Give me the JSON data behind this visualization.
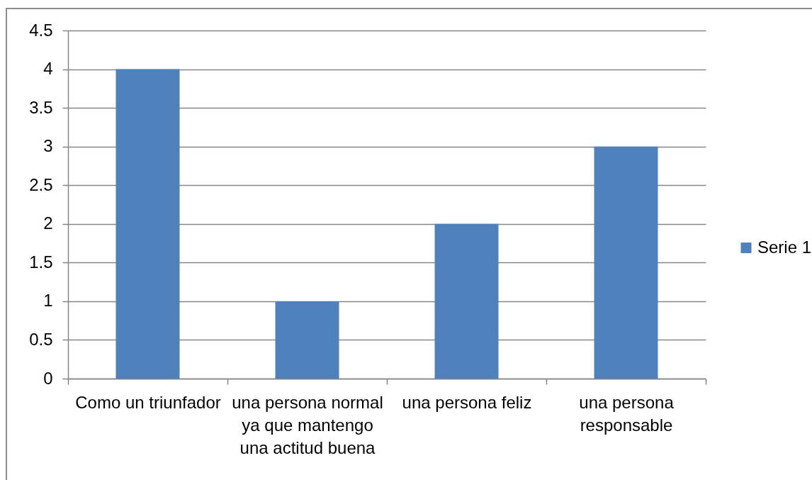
{
  "chart_data": {
    "type": "bar",
    "categories": [
      "Como un triunfador",
      "una persona normal ya que mantengo una actitud buena",
      "una persona feliz",
      "una persona responsable"
    ],
    "series": [
      {
        "name": "Serie 1",
        "color": "#4f81bd",
        "values": [
          4,
          1,
          2,
          3
        ]
      }
    ],
    "ylim": [
      0,
      4.5
    ],
    "yticks": [
      0,
      0.5,
      1,
      1.5,
      2,
      2.5,
      3,
      3.5,
      4,
      4.5
    ],
    "grid": "y",
    "legend": "right"
  }
}
